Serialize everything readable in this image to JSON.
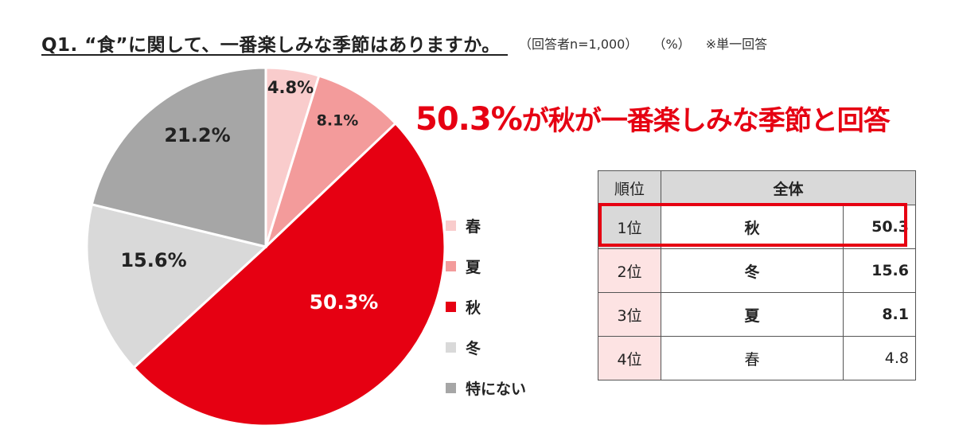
{
  "header": {
    "question": "Q1. “食”に関して、一番楽しみな季節はありますか。",
    "respondents": "（回答者n=1,000）",
    "unit": "（%）",
    "note": "※単一回答"
  },
  "headline": {
    "value": "50.3%",
    "text": "が秋が一番楽しみな季節と回答"
  },
  "chart_data": {
    "type": "pie",
    "slices": [
      {
        "label": "春",
        "value": 4.8,
        "display": "4.8%",
        "color": "#f9cccc"
      },
      {
        "label": "夏",
        "value": 8.1,
        "display": "8.1%",
        "color": "#f39b9b"
      },
      {
        "label": "秋",
        "value": 50.3,
        "display": "50.3%",
        "color": "#e60012"
      },
      {
        "label": "冬",
        "value": 15.6,
        "display": "15.6%",
        "color": "#d9d9d9"
      },
      {
        "label": "特にない",
        "value": 21.2,
        "display": "21.2%",
        "color": "#a6a6a6"
      }
    ],
    "start": "12 o'clock",
    "direction": "clockwise",
    "legend_position": "right"
  },
  "table": {
    "header_rank": "順位",
    "header_all": "全体",
    "rows": [
      {
        "rank": "1位",
        "season": "秋",
        "value": "50.3"
      },
      {
        "rank": "2位",
        "season": "冬",
        "value": "15.6"
      },
      {
        "rank": "3位",
        "season": "夏",
        "value": "8.1"
      },
      {
        "rank": "4位",
        "season": "春",
        "value": "4.8"
      }
    ]
  }
}
